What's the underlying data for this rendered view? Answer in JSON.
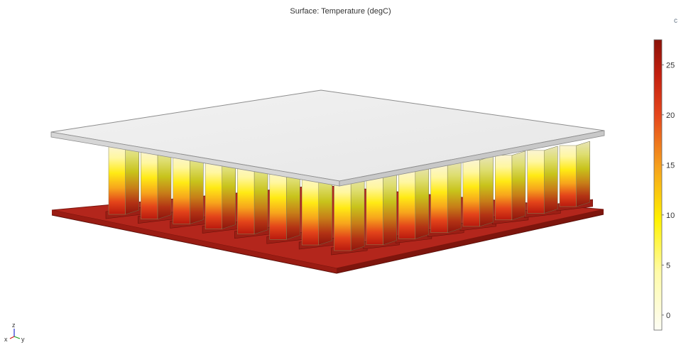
{
  "plot": {
    "title": "Surface: Temperature (degC)",
    "corner_mark": "c"
  },
  "colorbar": {
    "ticks": [
      "25",
      "20",
      "15",
      "10",
      "5",
      "0"
    ],
    "tick_values": [
      25,
      20,
      15,
      10,
      5,
      0
    ],
    "min": -1.5,
    "max": 27.5,
    "colors": [
      "#fdfdf3",
      "#fffb8a",
      "#fff200",
      "#f9a51c",
      "#e8441c",
      "#c11a0e",
      "#8b1208"
    ]
  },
  "axes": {
    "z": "z",
    "x": "x",
    "y": "y",
    "x_color": "#d01818",
    "y_color": "#18a018",
    "z_color": "#2030d0"
  },
  "model": {
    "fin_count_front": 15,
    "fin_count_back": 15,
    "colors": {
      "top_plate": "#ededed",
      "top_plate_edge": "#9a9a9a",
      "base_plate_top": "#b5271d",
      "base_plate_side": "#8a1a12",
      "fin_top": "#fbf6c8",
      "fin_mid": "#fff200",
      "fin_low": "#f08a1c",
      "fin_bottom": "#c3200f"
    }
  }
}
